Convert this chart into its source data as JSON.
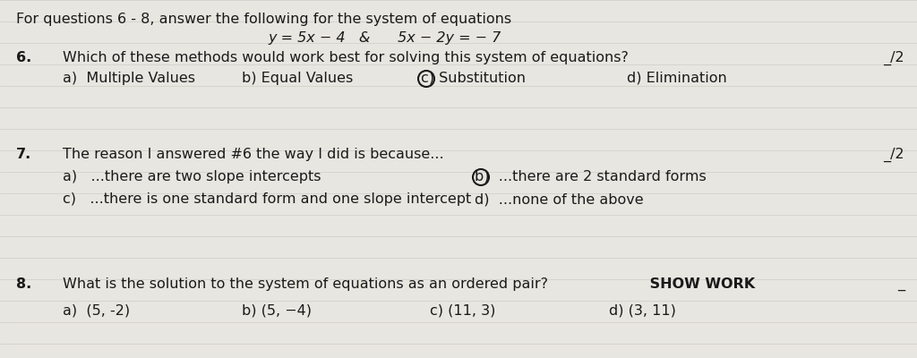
{
  "bg_color": "#e8e6e0",
  "text_color": "#1a1a1a",
  "title_line1": "For questions 6 - 8, answer the following for the system of equations",
  "title_line2": "y = 5x − 4   &      5x − 2y = − 7",
  "q6_num": "6.",
  "q6_text": "Which of these methods would work best for solving this system of equations?",
  "q6_score": "_/2",
  "q6_a": "a)  Multiple Values",
  "q6_b": "b) Equal Values",
  "q6_c": "c) Substitution",
  "q6_d": "d) Elimination",
  "q7_num": "7.",
  "q7_text": "The reason I answered #6 the way I did is because...",
  "q7_score": "_/2",
  "q7_a": "a)   ...there are two slope intercepts",
  "q7_b": "b)  ...there are 2 standard forms",
  "q7_c": "c)   ...there is one standard form and one slope intercept",
  "q7_d": "d)  ...none of the above",
  "q8_num": "8.",
  "q8_text": "What is the solution to the system of equations as an ordered pair?",
  "q8_bold": " SHOW WORK",
  "q8_score": "_",
  "q8_a": "a)  (5, -2)",
  "q8_b": "b) (5, −4)",
  "q8_c": "c) (11, 3)",
  "q8_d": "d) (3, 11)"
}
